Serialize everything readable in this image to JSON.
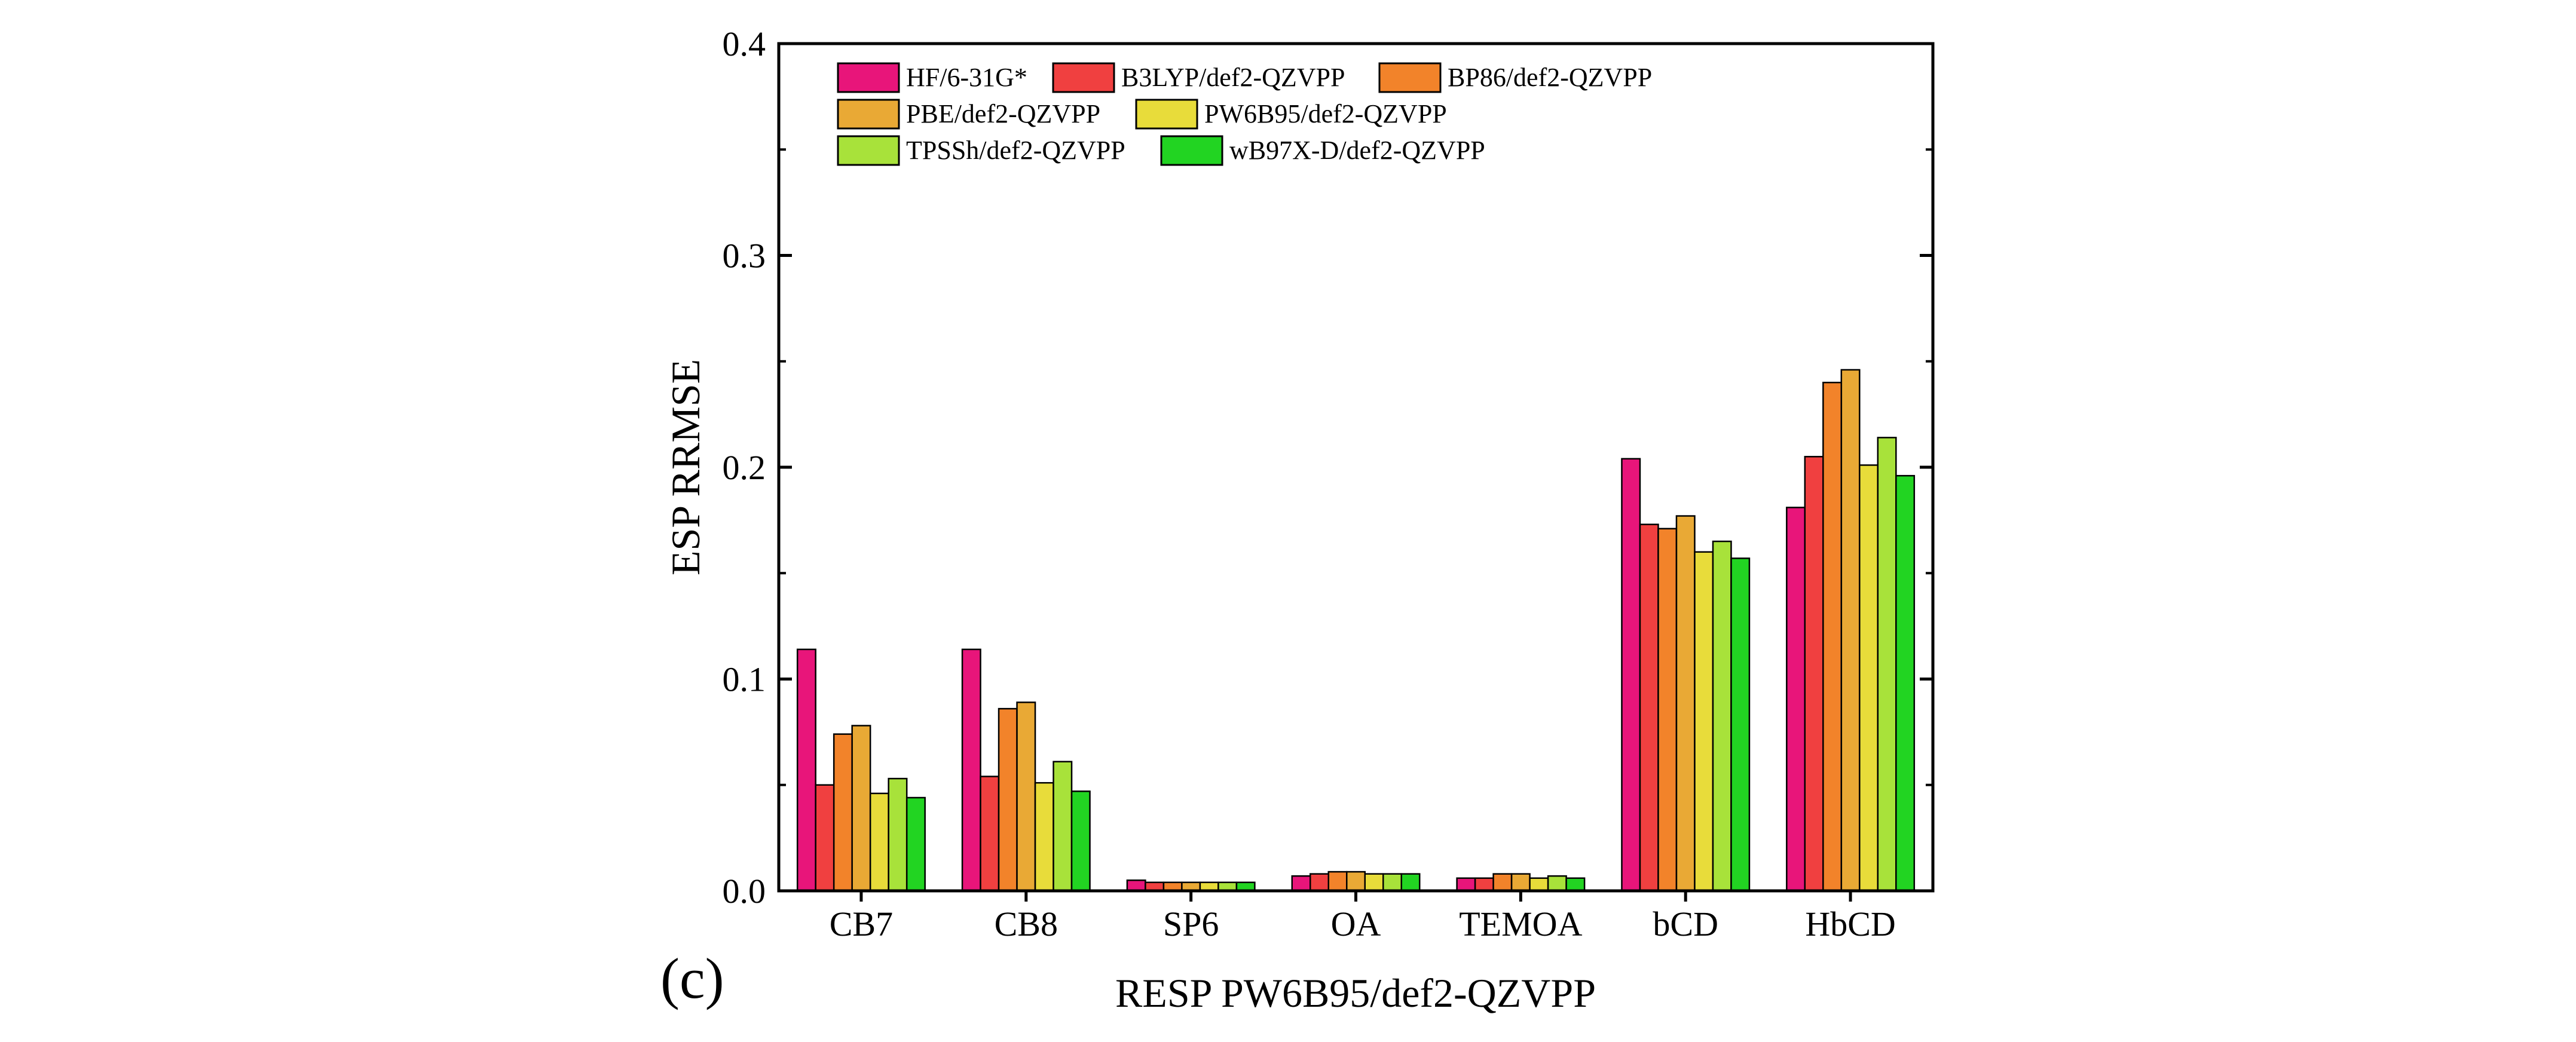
{
  "panel_label": "(c)",
  "chart_data": {
    "type": "bar",
    "title": "",
    "xlabel": "RESP PW6B95/def2-QZVPP",
    "ylabel": "ESP RRMSE",
    "ylim": [
      0,
      0.4
    ],
    "yticks": [
      0.0,
      0.1,
      0.2,
      0.3,
      0.4
    ],
    "ytick_labels": [
      "0.0",
      "0.1",
      "0.2",
      "0.3",
      "0.4"
    ],
    "grid": false,
    "legend_position": "top-left",
    "categories": [
      "CB7",
      "CB8",
      "SP6",
      "OA",
      "TEMOA",
      "bCD",
      "HbCD"
    ],
    "series": [
      {
        "name": "HF/6-31G*",
        "color": "#e8157a",
        "values": [
          0.114,
          0.114,
          0.005,
          0.007,
          0.006,
          0.204,
          0.181
        ]
      },
      {
        "name": "B3LYP/def2-QZVPP",
        "color": "#f04040",
        "values": [
          0.05,
          0.054,
          0.004,
          0.008,
          0.006,
          0.173,
          0.205
        ]
      },
      {
        "name": "BP86/def2-QZVPP",
        "color": "#f2832a",
        "values": [
          0.074,
          0.086,
          0.004,
          0.009,
          0.008,
          0.171,
          0.24
        ]
      },
      {
        "name": "PBE/def2-QZVPP",
        "color": "#e9a935",
        "values": [
          0.078,
          0.089,
          0.004,
          0.009,
          0.008,
          0.177,
          0.246
        ]
      },
      {
        "name": "PW6B95/def2-QZVPP",
        "color": "#e8dc3a",
        "values": [
          0.046,
          0.051,
          0.004,
          0.008,
          0.006,
          0.16,
          0.201
        ]
      },
      {
        "name": "TPSSh/def2-QZVPP",
        "color": "#a8e23a",
        "values": [
          0.053,
          0.061,
          0.004,
          0.008,
          0.007,
          0.165,
          0.214
        ]
      },
      {
        "name": "wB97X-D/def2-QZVPP",
        "color": "#22d422",
        "values": [
          0.044,
          0.047,
          0.004,
          0.008,
          0.006,
          0.157,
          0.196
        ]
      }
    ]
  }
}
